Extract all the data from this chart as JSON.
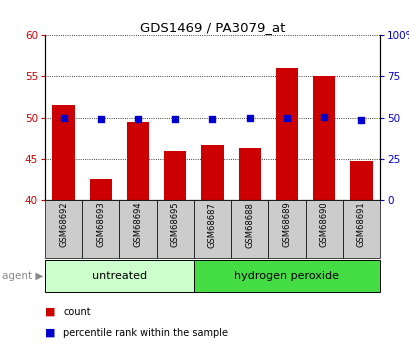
{
  "title": "GDS1469 / PA3079_at",
  "samples": [
    "GSM68692",
    "GSM68693",
    "GSM68694",
    "GSM68695",
    "GSM68687",
    "GSM68688",
    "GSM68689",
    "GSM68690",
    "GSM68691"
  ],
  "count_values": [
    51.5,
    42.5,
    49.5,
    46.0,
    46.7,
    46.3,
    56.0,
    55.0,
    44.7
  ],
  "percentile_values": [
    50.0,
    49.0,
    49.3,
    49.0,
    49.0,
    49.5,
    50.0,
    50.5,
    48.5
  ],
  "bar_color": "#cc0000",
  "dot_color": "#0000cc",
  "left_ylim": [
    40,
    60
  ],
  "right_ylim": [
    0,
    100
  ],
  "left_yticks": [
    40,
    45,
    50,
    55,
    60
  ],
  "right_yticks": [
    0,
    25,
    50,
    75,
    100
  ],
  "right_yticklabels": [
    "0",
    "25",
    "50",
    "75",
    "100%"
  ],
  "groups": [
    {
      "label": "untreated",
      "start": 0,
      "end": 4,
      "color": "#ccffcc"
    },
    {
      "label": "hydrogen peroxide",
      "start": 4,
      "end": 9,
      "color": "#44dd44"
    }
  ],
  "agent_label": "agent",
  "legend_items": [
    {
      "label": "count",
      "color": "#cc0000"
    },
    {
      "label": "percentile rank within the sample",
      "color": "#0000cc"
    }
  ],
  "tick_bg_color": "#cccccc",
  "plot_bg_color": "#ffffff",
  "fig_bg_color": "#ffffff"
}
